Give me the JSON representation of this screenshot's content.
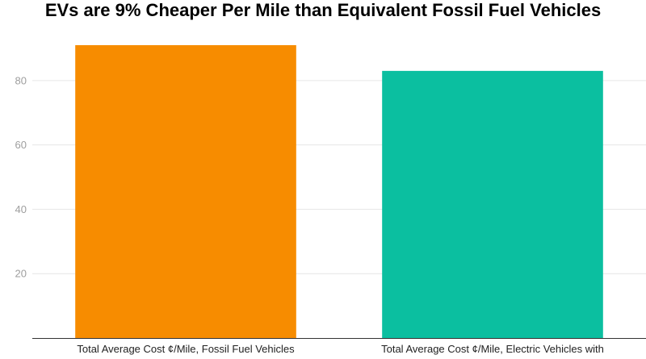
{
  "chart_data": {
    "type": "bar",
    "title": "EVs are 9% Cheaper Per Mile than Equivalent Fossil Fuel Vehicles",
    "categories": [
      "Total Average Cost ¢/Mile, Fossil Fuel Vehicles",
      "Total Average Cost ¢/Mile, Electric Vehicles with"
    ],
    "values": [
      91,
      83
    ],
    "colors": [
      "#f78c00",
      "#0bbfa0"
    ],
    "xlabel": "",
    "ylabel": "",
    "yticks": [
      20,
      40,
      60,
      80
    ],
    "ylim": [
      0,
      95
    ],
    "grid": true,
    "legend": "none"
  }
}
